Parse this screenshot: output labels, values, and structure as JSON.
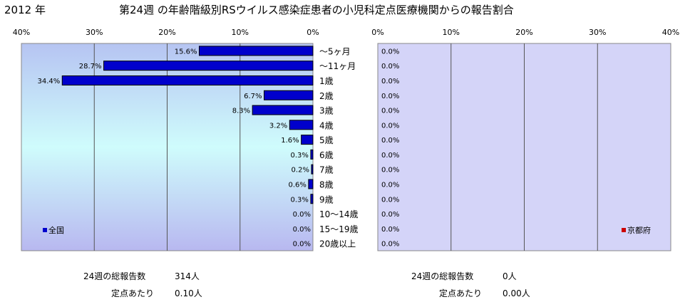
{
  "header": {
    "year": "2012 年",
    "title": "第24週 の年齢階級別RSウイルス感染症患者の小児科定点医療機関からの報告割合"
  },
  "chart_data": [
    {
      "type": "bar",
      "orientation": "horizontal",
      "direction": "right-to-left",
      "series": [
        {
          "name": "全国",
          "color": "#0000cc",
          "values": [
            15.6,
            28.7,
            34.4,
            6.7,
            8.3,
            3.2,
            1.6,
            0.3,
            0.2,
            0.6,
            0.3,
            0.0,
            0.0,
            0.0
          ]
        }
      ],
      "categories": [
        "～5ヶ月",
        "～11ヶ月",
        "1歳",
        "2歳",
        "3歳",
        "4歳",
        "5歳",
        "6歳",
        "7歳",
        "8歳",
        "9歳",
        "10～14歳",
        "15～19歳",
        "20歳以上"
      ],
      "value_labels": [
        "15.6%",
        "28.7%",
        "34.4%",
        "6.7%",
        "8.3%",
        "3.2%",
        "1.6%",
        "0.3%",
        "0.2%",
        "0.6%",
        "0.3%",
        "0.0%",
        "0.0%",
        "0.0%"
      ],
      "xlim": [
        0,
        40
      ],
      "xticks": [
        "40%",
        "30%",
        "20%",
        "10%",
        "0%"
      ],
      "grid": true,
      "legend": "bottom-left",
      "background": "gradient #b6c4f2 → #cffcfc → #b8b8f0"
    },
    {
      "type": "bar",
      "orientation": "horizontal",
      "direction": "left-to-right",
      "series": [
        {
          "name": "京都府",
          "color": "#cc0000",
          "values": [
            0,
            0,
            0,
            0,
            0,
            0,
            0,
            0,
            0,
            0,
            0,
            0,
            0,
            0
          ]
        }
      ],
      "value_labels": [
        "0.0%",
        "0.0%",
        "0.0%",
        "0.0%",
        "0.0%",
        "0.0%",
        "0.0%",
        "0.0%",
        "0.0%",
        "0.0%",
        "0.0%",
        "0.0%",
        "0.0%",
        "0.0%"
      ],
      "xlim": [
        0,
        40
      ],
      "xticks": [
        "0%",
        "10%",
        "20%",
        "30%",
        "40%"
      ],
      "grid": true,
      "legend": "bottom-right",
      "background": "#d4d4f8"
    }
  ],
  "footer": {
    "left": {
      "total_label": "24週の総報告数",
      "total_value": "314人",
      "per_label": "定点あたり",
      "per_value": "0.10人"
    },
    "right": {
      "total_label": "24週の総報告数",
      "total_value": "0人",
      "per_label": "定点あたり",
      "per_value": "0.00人"
    }
  }
}
